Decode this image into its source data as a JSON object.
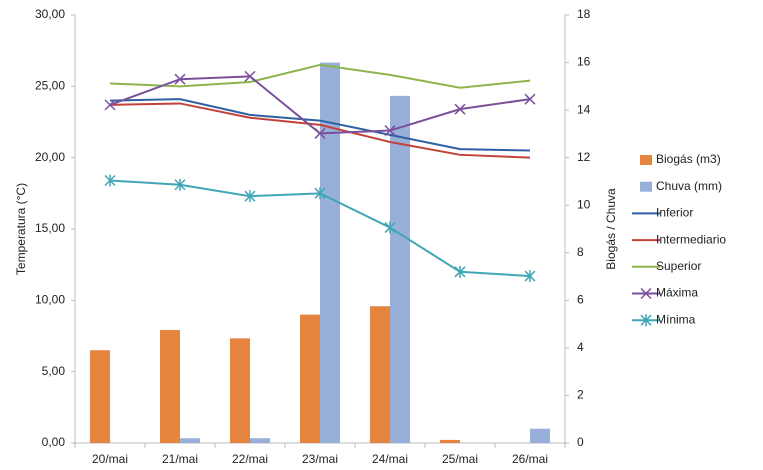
{
  "chart_data": {
    "type": "combo",
    "y_label": "Temperatura (°C)",
    "y2_label": "Biogás / Chuva",
    "categories": [
      "20/mai",
      "21/mai",
      "22/mai",
      "23/mai",
      "24/mai",
      "25/mai",
      "26/mai"
    ],
    "ylim": [
      0,
      30
    ],
    "yticks": [
      {
        "value": 0,
        "label": "0,00"
      },
      {
        "value": 5,
        "label": "5,00"
      },
      {
        "value": 10,
        "label": "10,00"
      },
      {
        "value": 15,
        "label": "15,00"
      },
      {
        "value": 20,
        "label": "20,00"
      },
      {
        "value": 25,
        "label": "25,00"
      },
      {
        "value": 30,
        "label": "30,00"
      }
    ],
    "y2lim": [
      0,
      18
    ],
    "y2ticks": [
      0,
      2,
      4,
      6,
      8,
      10,
      12,
      14,
      16,
      18
    ],
    "grid": false,
    "legend": "right",
    "series": [
      {
        "name": "Biogás (m3)",
        "type": "bar",
        "axis": "y2",
        "color": "#e5843e",
        "values": [
          3.9,
          4.75,
          4.4,
          5.4,
          5.75,
          0.13,
          0
        ]
      },
      {
        "name": "Chuva (mm)",
        "type": "bar",
        "axis": "y2",
        "color": "#98afda",
        "values": [
          0,
          0.2,
          0.2,
          16.0,
          14.6,
          0,
          0.6
        ]
      },
      {
        "name": "Inferior",
        "type": "line",
        "color": "#2f60a4",
        "values": [
          24.0,
          24.1,
          23.0,
          22.6,
          21.6,
          20.6,
          20.5
        ]
      },
      {
        "name": "Intermediario",
        "type": "line",
        "color": "#c3413b",
        "values": [
          23.7,
          23.8,
          22.8,
          22.3,
          21.1,
          20.2,
          20.0
        ]
      },
      {
        "name": "Superior",
        "type": "line",
        "color": "#8db54b",
        "values": [
          25.2,
          25.0,
          25.3,
          26.5,
          25.8,
          24.9,
          25.4
        ]
      },
      {
        "name": "Máxima",
        "type": "line",
        "marker": "x",
        "color": "#7b509b",
        "values": [
          23.7,
          25.5,
          25.7,
          21.7,
          21.9,
          23.4,
          24.1
        ]
      },
      {
        "name": "Mínima",
        "type": "line",
        "marker": "star",
        "color": "#40a6b6",
        "values": [
          18.4,
          18.1,
          17.3,
          17.5,
          15.1,
          12.0,
          11.7
        ]
      }
    ]
  }
}
